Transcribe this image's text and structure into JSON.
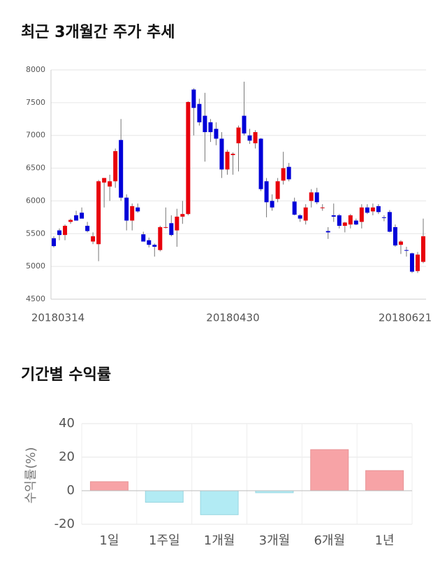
{
  "chart_data": [
    {
      "type": "candlestick",
      "title": "최근 3개월간 주가 추세",
      "categories": [
        "20180314",
        null,
        null,
        null,
        null,
        null,
        null,
        null,
        null,
        null,
        null,
        null,
        null,
        null,
        null,
        null,
        null,
        null,
        null,
        null,
        null,
        null,
        null,
        null,
        null,
        null,
        null,
        null,
        null,
        null,
        null,
        null,
        "20180430",
        null,
        null,
        null,
        null,
        null,
        null,
        null,
        null,
        null,
        null,
        null,
        null,
        null,
        null,
        null,
        null,
        null,
        null,
        null,
        null,
        null,
        null,
        null,
        null,
        null,
        null,
        null,
        null,
        null,
        null,
        null,
        null,
        null,
        "20180621"
      ],
      "open": [
        5430,
        5550,
        5480,
        5680,
        5780,
        5820,
        5620,
        5380,
        5340,
        6280,
        6220,
        6300,
        6930,
        6050,
        5700,
        5900,
        5490,
        5400,
        5330,
        5250,
        5600,
        5660,
        5550,
        5760,
        5800,
        7700,
        7480,
        7300,
        7200,
        7100,
        6950,
        6480,
        6700,
        6880,
        7300,
        7000,
        6880,
        6950,
        6300,
        6000,
        6030,
        6310,
        6520,
        5990,
        5780,
        5700,
        6000,
        6130,
        5900,
        5540,
        5780,
        5780,
        5620,
        5640,
        5700,
        5680,
        5900,
        5840,
        5920,
        5750,
        5830,
        5600,
        5330,
        5250,
        5200,
        4930,
        5070
      ],
      "high": [
        5460,
        5580,
        5640,
        5730,
        5850,
        5900,
        5680,
        5520,
        6320,
        6350,
        6400,
        6800,
        7250,
        6100,
        5960,
        5960,
        5530,
        5440,
        5350,
        5620,
        5900,
        5780,
        5880,
        6000,
        7520,
        7720,
        7560,
        7650,
        7250,
        7200,
        7050,
        6780,
        6740,
        7150,
        7820,
        7100,
        7080,
        6960,
        6350,
        6100,
        6350,
        6750,
        6580,
        6050,
        5800,
        5950,
        6180,
        6200,
        5950,
        5600,
        5960,
        5800,
        5680,
        5800,
        5730,
        5950,
        5950,
        5960,
        5950,
        5780,
        5860,
        5640,
        5400,
        5300,
        5210,
        5220,
        5730
      ],
      "low": [
        5290,
        5400,
        5400,
        5650,
        5700,
        5740,
        5520,
        5340,
        5080,
        5900,
        6000,
        6200,
        6000,
        5550,
        5550,
        5820,
        5380,
        5290,
        5150,
        5230,
        5580,
        5460,
        5300,
        5650,
        5780,
        7000,
        7150,
        6600,
        6900,
        6850,
        6350,
        6400,
        6400,
        6450,
        7000,
        6870,
        6800,
        6150,
        5750,
        5850,
        5980,
        6250,
        6300,
        5780,
        5680,
        5640,
        5900,
        5950,
        5850,
        5420,
        5680,
        5580,
        5520,
        5580,
        5630,
        5580,
        5800,
        5780,
        5800,
        5690,
        5520,
        5300,
        5190,
        5150,
        4900,
        4900,
        5050
      ],
      "close": [
        5310,
        5480,
        5620,
        5710,
        5700,
        5730,
        5540,
        5460,
        6300,
        6350,
        6300,
        6760,
        6050,
        5700,
        5920,
        5840,
        5380,
        5330,
        5300,
        5600,
        5600,
        5480,
        5760,
        5800,
        7510,
        7420,
        7200,
        7050,
        7050,
        6950,
        6480,
        6750,
        6720,
        7120,
        7030,
        6920,
        7050,
        6180,
        5980,
        5900,
        6300,
        6500,
        6330,
        5790,
        5730,
        5900,
        6130,
        5980,
        5900,
        5520,
        5760,
        5620,
        5670,
        5780,
        5640,
        5900,
        5820,
        5900,
        5830,
        5740,
        5530,
        5320,
        5380,
        5240,
        4920,
        5180,
        5460
      ],
      "up_color": "#e8000b",
      "down_color": "#0000d8",
      "ylim": [
        4500,
        8000
      ],
      "yticks": [
        4500,
        5000,
        5500,
        6000,
        6500,
        7000,
        7500,
        8000
      ],
      "grid": true
    },
    {
      "type": "bar",
      "title": "기간별 수익률",
      "ylabel": "수익률(%)",
      "categories": [
        "1일",
        "1주일",
        "1개월",
        "3개월",
        "6개월",
        "1년"
      ],
      "values": [
        5.4,
        -6.9,
        -14.3,
        -1.2,
        24.5,
        12.0
      ],
      "positive_color": "#f7a3a6",
      "negative_color": "#b2ebf4",
      "ylim": [
        -20,
        40
      ],
      "yticks": [
        -20,
        0,
        20,
        40
      ],
      "grid": true
    }
  ]
}
